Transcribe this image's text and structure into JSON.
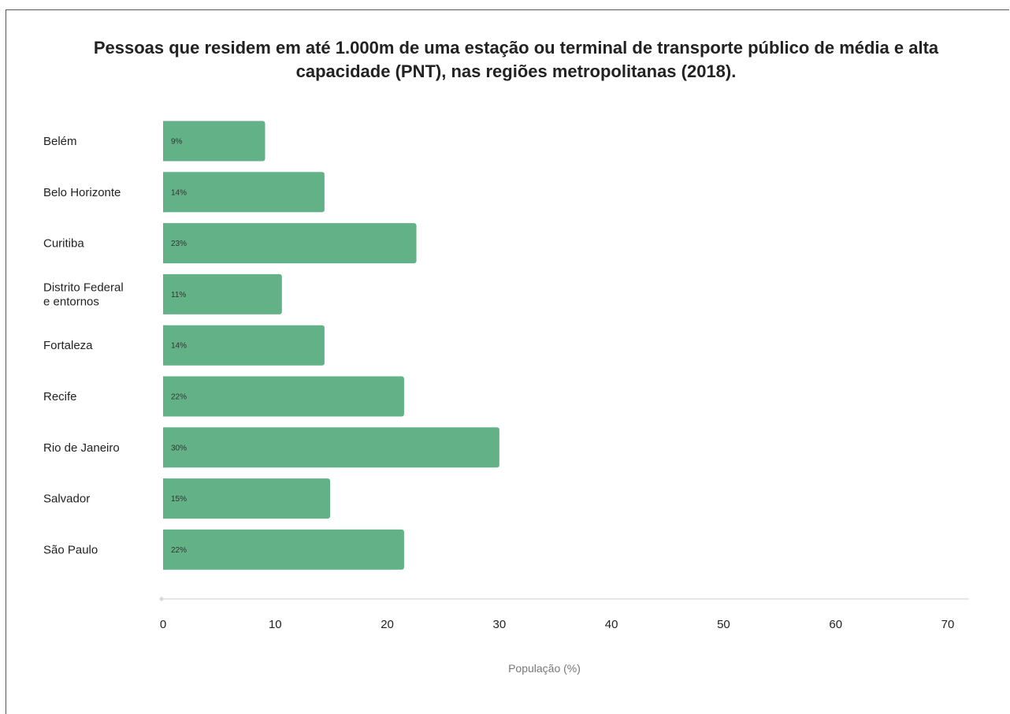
{
  "chart_data": {
    "type": "bar",
    "orientation": "horizontal",
    "title": "Pessoas que residem em até 1.000m de uma estação ou terminal de transporte público de média e alta capacidade (PNT), nas regiões metropolitanas (2018).",
    "xlabel": "População (%)",
    "ylabel": "",
    "categories": [
      [
        "Belém"
      ],
      [
        "Belo Horizonte"
      ],
      [
        "Curitiba"
      ],
      [
        "Distrito Federal",
        "e entornos"
      ],
      [
        "Fortaleza"
      ],
      [
        "Recife"
      ],
      [
        "Rio de Janeiro"
      ],
      [
        "Salvador"
      ],
      [
        "São Paulo"
      ]
    ],
    "values": [
      9.1,
      14.4,
      22.6,
      10.6,
      14.4,
      21.5,
      30,
      14.9,
      21.5
    ],
    "data_labels": [
      "9%",
      "14%",
      "23%",
      "11%",
      "14%",
      "22%",
      "30%",
      "15%",
      "22%"
    ],
    "xlim": [
      0,
      70
    ],
    "xticks": [
      "0",
      "10",
      "20",
      "30",
      "40",
      "50",
      "60",
      "70"
    ],
    "grid": false,
    "bar_color": "#63b287",
    "axis_color": "#e6e6e6"
  }
}
